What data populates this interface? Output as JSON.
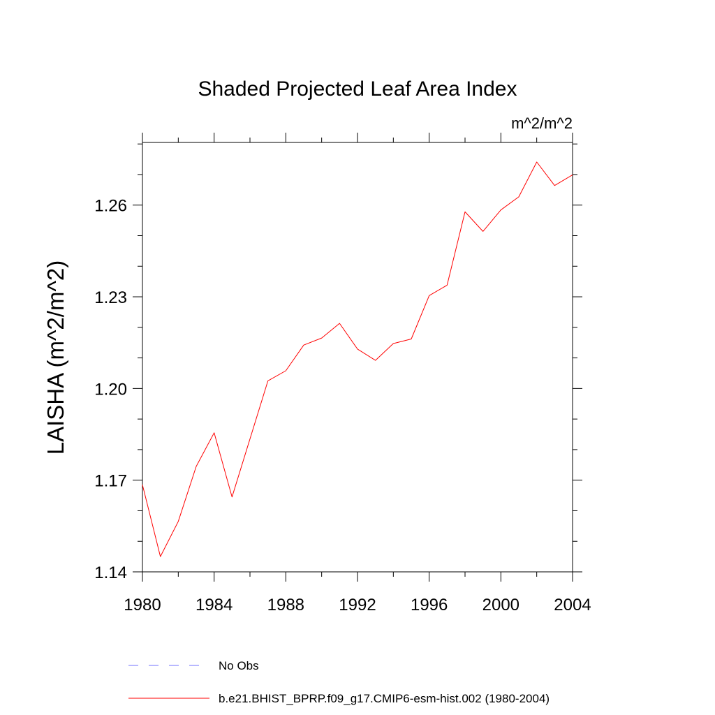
{
  "chart_data": {
    "type": "line",
    "title": "Shaded Projected Leaf Area Index",
    "units": "m^2/m^2",
    "ylabel": "LAISHA  (m^2/m^2)",
    "xlabel": "",
    "xlim": [
      1980,
      2004
    ],
    "ylim": [
      1.14,
      1.2805
    ],
    "x_ticks": [
      1980,
      1984,
      1988,
      1992,
      1996,
      2000,
      2004
    ],
    "x_tick_labels": [
      "1980",
      "1984",
      "1988",
      "1992",
      "1996",
      "2000",
      "2004"
    ],
    "y_ticks": [
      1.14,
      1.17,
      1.2,
      1.23,
      1.26
    ],
    "y_tick_labels": [
      "1.14",
      "1.17",
      "1.20",
      "1.23",
      "1.26"
    ],
    "x_minor_step": 2,
    "y_minor_step": 0.01,
    "grid": false,
    "legend_position": "bottom",
    "series": [
      {
        "name": "b.e21.BHIST_BPRP.f09_g17.CMIP6-esm-hist.002 (1980-2004)",
        "color": "#ff0000",
        "style": "solid",
        "x": [
          1980,
          1981,
          1982,
          1983,
          1984,
          1985,
          1986,
          1987,
          1988,
          1989,
          1990,
          1991,
          1992,
          1993,
          1994,
          1995,
          1996,
          1997,
          1998,
          1999,
          2000,
          2001,
          2002,
          2003,
          2004
        ],
        "y": [
          1.1685,
          1.145,
          1.1565,
          1.1745,
          1.1855,
          1.1645,
          1.1835,
          1.2025,
          1.2058,
          1.2142,
          1.2165,
          1.2213,
          1.2129,
          1.2092,
          1.2147,
          1.2162,
          1.2304,
          1.2338,
          1.2578,
          1.2514,
          1.2584,
          1.2627,
          1.2741,
          1.2664,
          1.2699
        ]
      }
    ],
    "legend": [
      {
        "label": "No Obs",
        "color": "#7070ff",
        "style": "dashed"
      },
      {
        "label": "b.e21.BHIST_BPRP.f09_g17.CMIP6-esm-hist.002 (1980-2004)",
        "color": "#ff0000",
        "style": "solid"
      }
    ]
  }
}
